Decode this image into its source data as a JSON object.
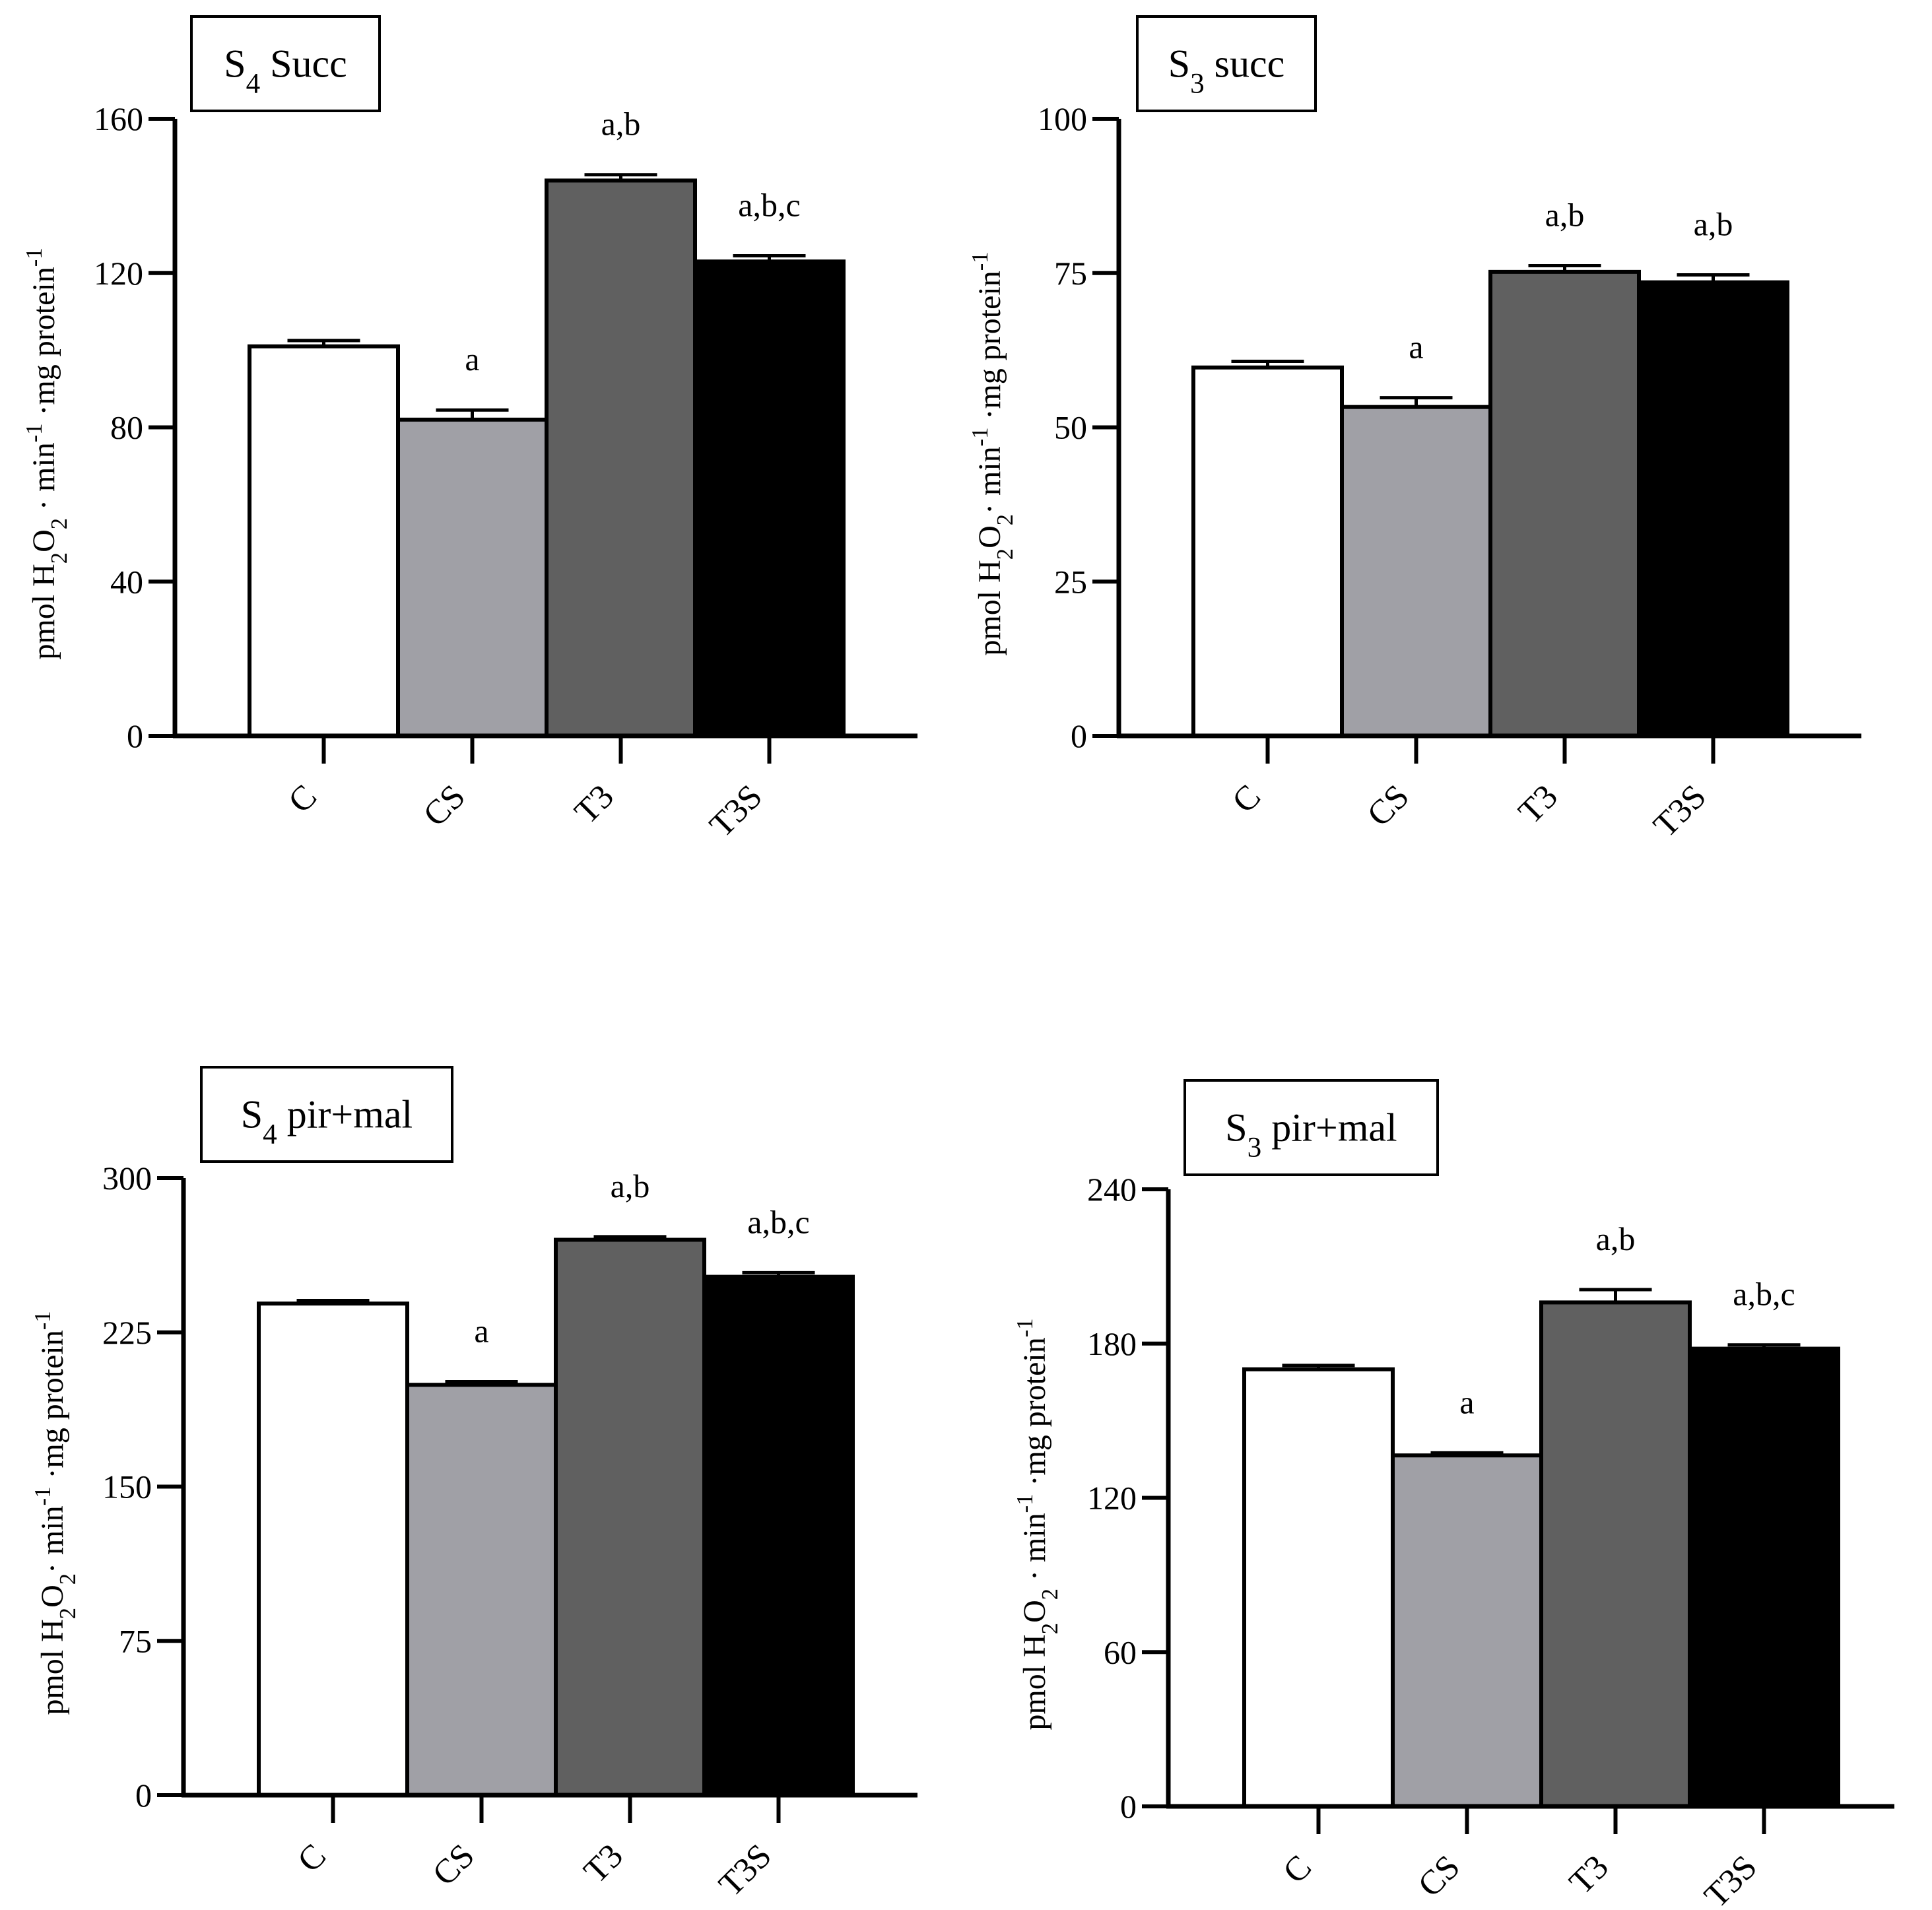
{
  "chart_data": [
    {
      "id": "s4-succ",
      "type": "bar",
      "title": "S4 Succ",
      "title_parts": {
        "main": "S",
        "sub": "4",
        "rest": " Succ"
      },
      "ylabel": {
        "pre": "pmol H",
        "s1": "2",
        "mid": "O",
        "s2": "2",
        "post": " · min",
        "e1": "-1",
        "post2": " ·mg protein",
        "e2": "-1"
      },
      "categories": [
        "C",
        "CS",
        "T3",
        "T3S"
      ],
      "values": [
        101,
        82,
        144,
        123
      ],
      "errors": [
        1.5,
        2.5,
        1.5,
        1.5
      ],
      "significance": [
        "",
        "a",
        "a,b",
        "a,b,c"
      ],
      "ylim": [
        0,
        160
      ],
      "yticks": [
        0,
        40,
        80,
        120,
        160
      ]
    },
    {
      "id": "s3-succ",
      "type": "bar",
      "title": "S3 succ",
      "title_parts": {
        "main": "S",
        "sub": "3",
        "rest": " succ"
      },
      "ylabel": {
        "pre": "pmol  H",
        "s1": "2",
        "mid": "O",
        "s2": "2",
        "post": "· min",
        "e1": "-1",
        "post2": " ·mg protein",
        "e2": "-1"
      },
      "categories": [
        "C",
        "CS",
        "T3",
        "T3S"
      ],
      "values": [
        59.7,
        53.3,
        75.2,
        73.5
      ],
      "errors": [
        1.0,
        1.5,
        1.0,
        1.2
      ],
      "significance": [
        "",
        "a",
        "a,b",
        "a,b"
      ],
      "ylim": [
        0,
        100
      ],
      "yticks": [
        0,
        25,
        50,
        75,
        100
      ]
    },
    {
      "id": "s4-pirmal",
      "type": "bar",
      "title": "S4 pir+mal",
      "title_parts": {
        "main": "S",
        "sub": "4",
        "rest": " pir+mal"
      },
      "ylabel": {
        "pre": "pmol  H",
        "s1": "2",
        "mid": "O",
        "s2": "2",
        "post": "· min",
        "e1": "-1",
        "post2": " ·mg protein",
        "e2": "-1"
      },
      "categories": [
        "C",
        "CS",
        "T3",
        "T3S"
      ],
      "values": [
        239,
        199.5,
        270,
        252
      ],
      "errors": [
        1.5,
        1.5,
        1.5,
        2.0
      ],
      "significance": [
        "",
        "a",
        "a,b",
        "a,b,c"
      ],
      "ylim": [
        0,
        300
      ],
      "yticks": [
        0,
        75,
        150,
        225,
        300
      ]
    },
    {
      "id": "s3-pirmal",
      "type": "bar",
      "title": "S3 pir+mal",
      "title_parts": {
        "main": "S",
        "sub": "3",
        "rest": " pir+mal"
      },
      "ylabel": {
        "pre": "pmol H",
        "s1": "2",
        "mid": "O",
        "s2": "2",
        "post": " · min",
        "e1": "-1",
        "post2": " ·mg protein",
        "e2": "-1"
      },
      "categories": [
        "C",
        "CS",
        "T3",
        "T3S"
      ],
      "values": [
        170,
        136.5,
        196,
        178
      ],
      "errors": [
        1.5,
        1.0,
        5.0,
        1.5
      ],
      "significance": [
        "",
        "a",
        "a,b",
        "a,b,c"
      ],
      "ylim": [
        0,
        240
      ],
      "yticks": [
        0,
        60,
        120,
        180,
        240
      ]
    }
  ],
  "colors": {
    "C": "#ffffff",
    "CS": "#a0a0a6",
    "T3": "#606060",
    "T3S": "#000000",
    "axis": "#000000"
  }
}
